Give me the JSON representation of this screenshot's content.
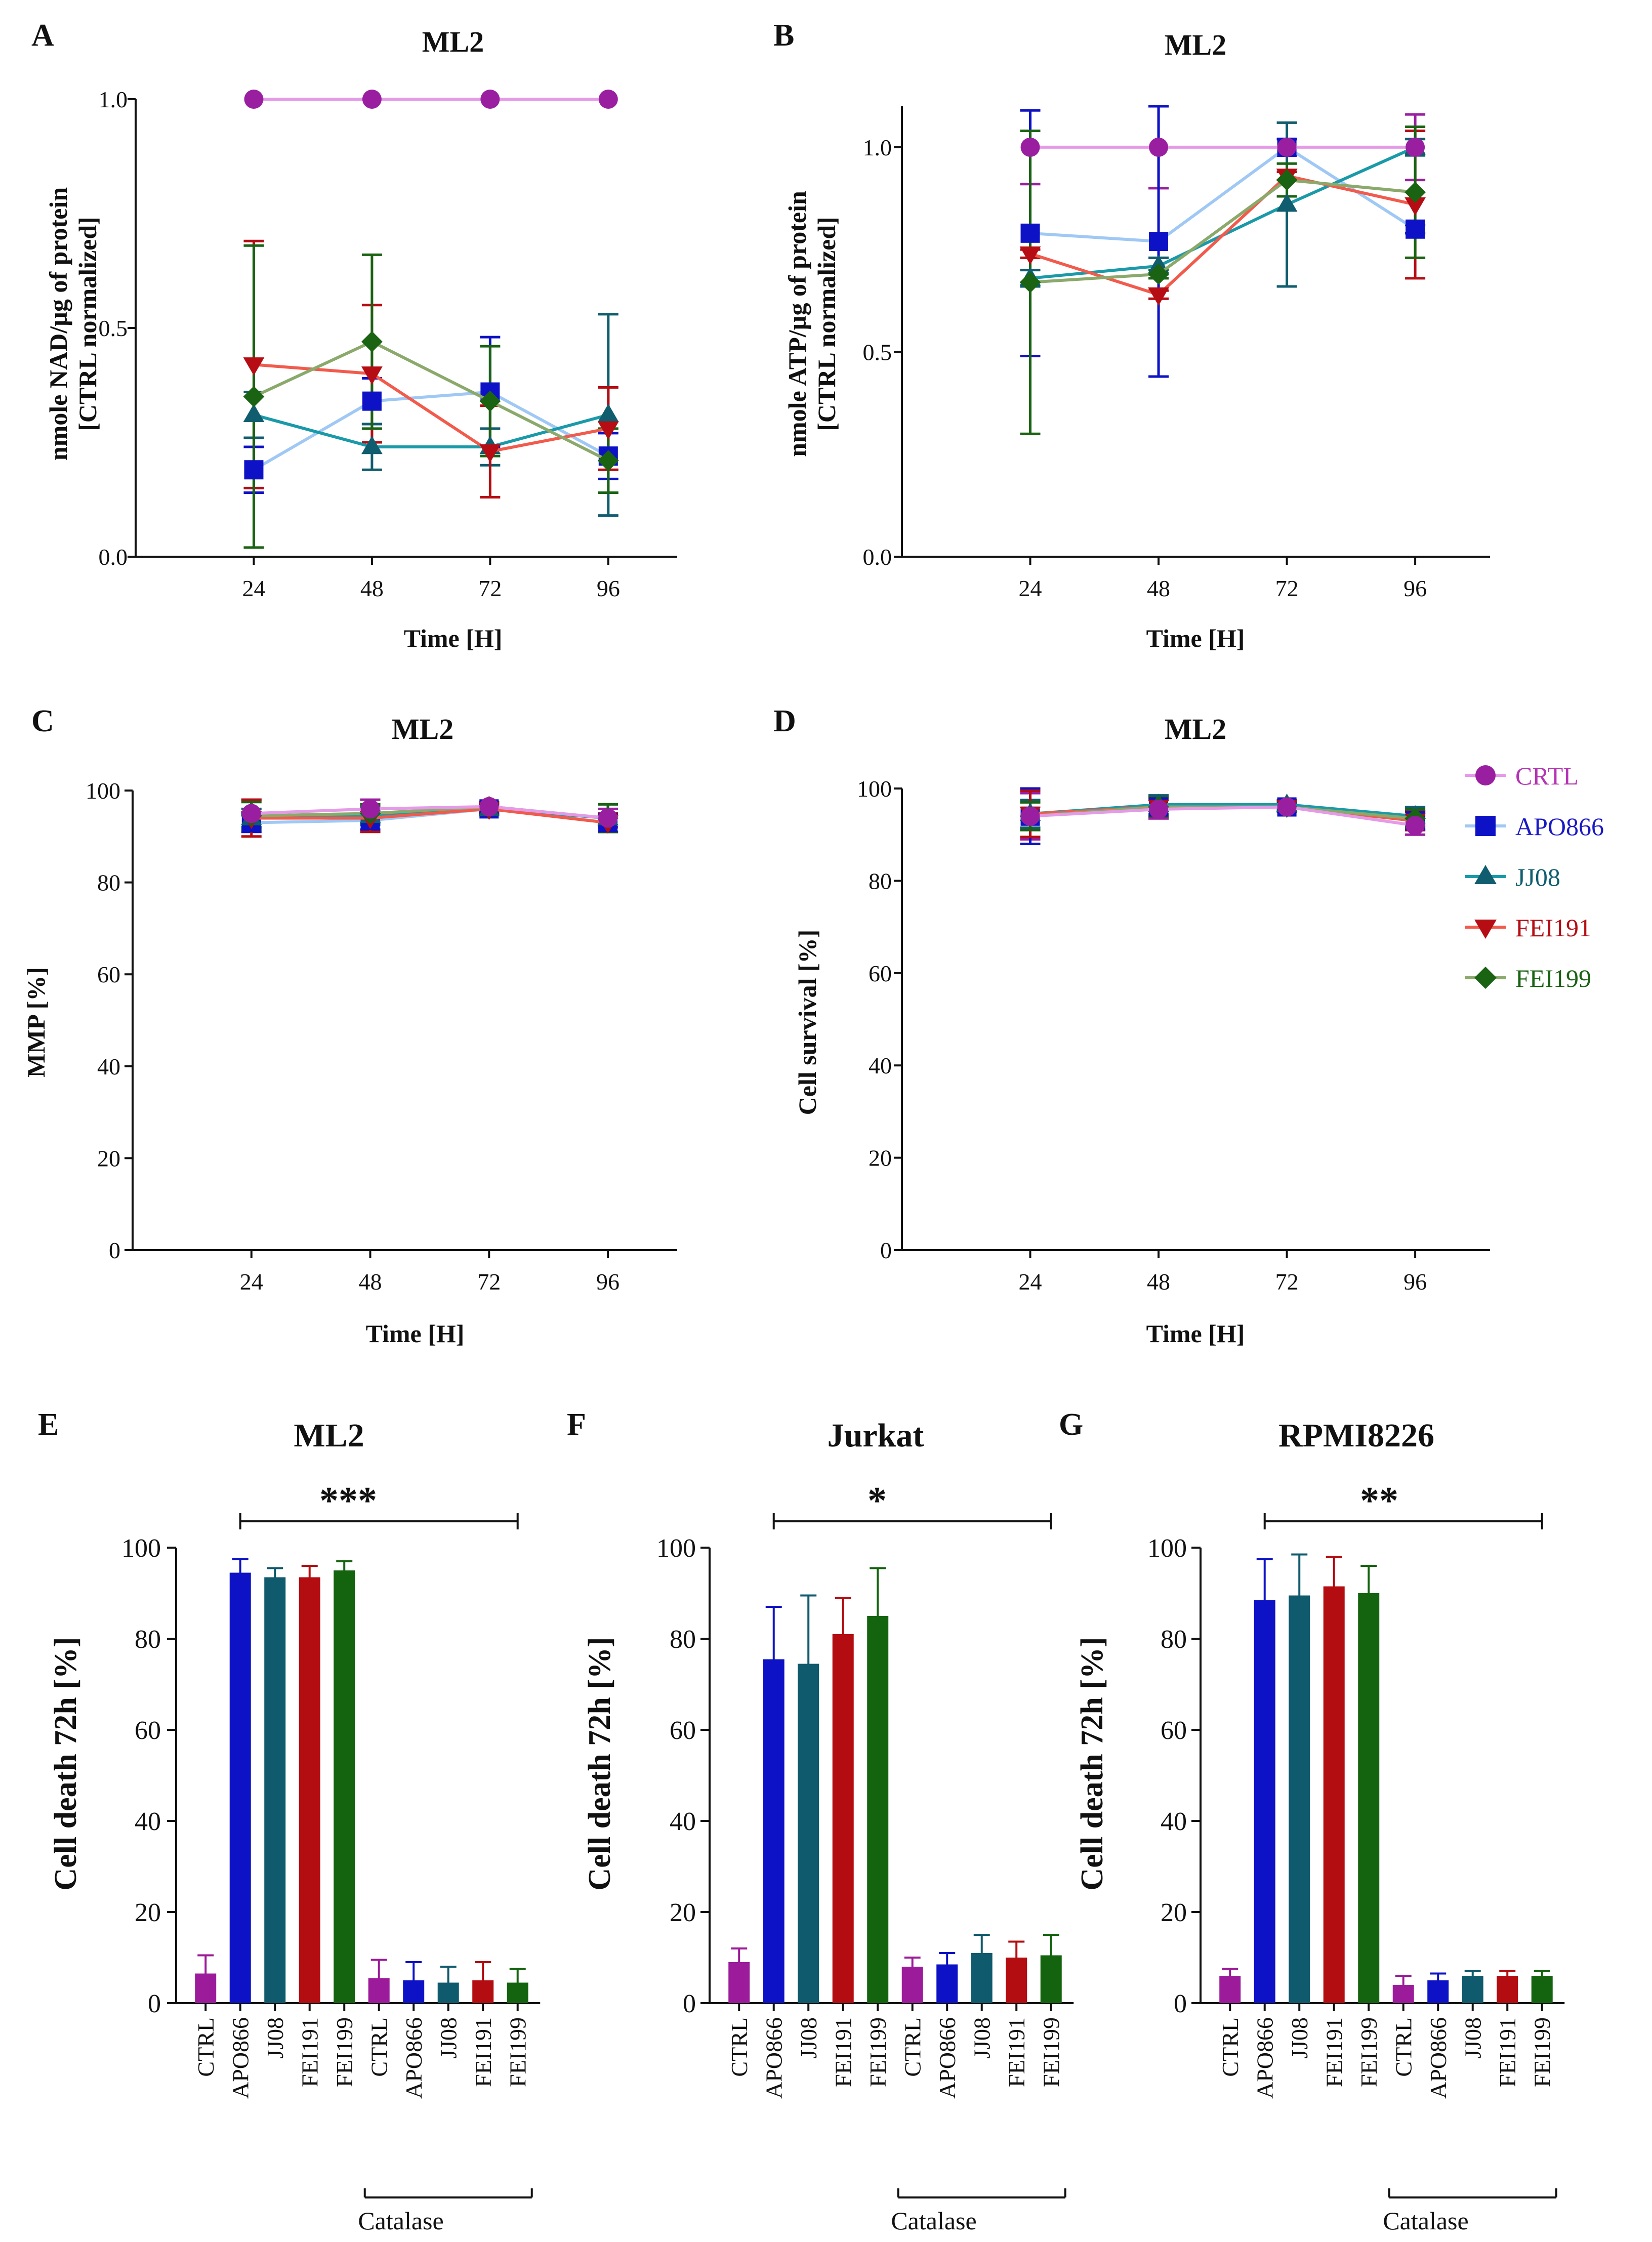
{
  "panels": [
    {
      "letter": "A",
      "title": "ML2",
      "ylabel": [
        "nmole NAD/µg of protein",
        "[CTRL normalized]"
      ],
      "xlabel": "Time [H]"
    },
    {
      "letter": "B",
      "title": "ML2",
      "ylabel": [
        "nmole ATP/µg of protein",
        "[CTRL normalized]"
      ],
      "xlabel": "Time [H]"
    },
    {
      "letter": "C",
      "title": "ML2",
      "ylabel": [
        "MMP [%]"
      ],
      "xlabel": "Time [H]"
    },
    {
      "letter": "D",
      "title": "ML2",
      "ylabel": [
        "Cell survival [%]"
      ],
      "xlabel": "Time [H]"
    },
    {
      "letter": "E",
      "title": "ML2",
      "ylabel": [
        "Cell death 72h [%]"
      ],
      "significance": "***",
      "group_label": "Catalase"
    },
    {
      "letter": "F",
      "title": "Jurkat",
      "ylabel": [
        "Cell death 72h [%]"
      ],
      "significance": "*",
      "group_label": "Catalase"
    },
    {
      "letter": "G",
      "title": "RPMI8226",
      "ylabel": [
        "Cell death 72h [%]"
      ],
      "significance": "**",
      "group_label": "Catalase"
    }
  ],
  "legend": [
    {
      "label": "CRTL",
      "marker": "circle",
      "color": "#9a1fa0",
      "line": "#e59ae8",
      "text_color": "#b533b5"
    },
    {
      "label": "APO866",
      "marker": "square",
      "color": "#0d12c6",
      "line": "#9fc8f5",
      "text_color": "#1a1ac4"
    },
    {
      "label": "JJ08",
      "marker": "triangle-up",
      "color": "#0f5d6e",
      "line": "#1a9aa8",
      "text_color": "#0f5d6e"
    },
    {
      "label": "FEI191",
      "marker": "triangle-down",
      "color": "#b50d13",
      "line": "#f25a4c",
      "text_color": "#b50d13"
    },
    {
      "label": "FEI199",
      "marker": "diamond",
      "color": "#1a6313",
      "line": "#8aa96b",
      "text_color": "#1a6313"
    }
  ],
  "chart_data": [
    {
      "id": "A",
      "type": "line",
      "title": "ML2",
      "xlabel": "Time [H]",
      "ylabel": "nmole NAD/µg of protein [CTRL normalized]",
      "x": [
        24,
        48,
        72,
        96
      ],
      "xlim": [
        0,
        110
      ],
      "ylim": [
        0,
        1.0
      ],
      "yticks": [
        0.0,
        0.5,
        1.0
      ],
      "ytick_labels": [
        "0.0",
        "0.5",
        "1.0"
      ],
      "series": [
        {
          "name": "CRTL",
          "values": [
            1.0,
            1.0,
            1.0,
            1.0
          ],
          "err": [
            0,
            0,
            0,
            0
          ]
        },
        {
          "name": "APO866",
          "values": [
            0.19,
            0.34,
            0.36,
            0.22
          ],
          "err": [
            0.05,
            0.05,
            0.12,
            0.05
          ]
        },
        {
          "name": "JJ08",
          "values": [
            0.31,
            0.24,
            0.24,
            0.31
          ],
          "err": [
            0.05,
            0.05,
            0.04,
            0.22
          ]
        },
        {
          "name": "FEI191",
          "values": [
            0.42,
            0.4,
            0.23,
            0.28
          ],
          "err": [
            0.27,
            0.15,
            0.1,
            0.09
          ]
        },
        {
          "name": "FEI199",
          "values": [
            0.35,
            0.47,
            0.34,
            0.21
          ],
          "err": [
            0.33,
            0.19,
            0.12,
            0.07
          ]
        }
      ]
    },
    {
      "id": "B",
      "type": "line",
      "title": "ML2",
      "xlabel": "Time [H]",
      "ylabel": "nmole ATP/µg of protein [CTRL normalized]",
      "x": [
        24,
        48,
        72,
        96
      ],
      "xlim": [
        0,
        110
      ],
      "ylim": [
        0,
        1.1
      ],
      "yticks": [
        0.0,
        0.5,
        1.0
      ],
      "ytick_labels": [
        "0.0",
        "0.5",
        "1.0"
      ],
      "series": [
        {
          "name": "CRTL",
          "values": [
            1.0,
            1.0,
            1.0,
            1.0
          ],
          "err": [
            0.09,
            0.1,
            0.02,
            0.08
          ]
        },
        {
          "name": "APO866",
          "values": [
            0.79,
            0.77,
            1.0,
            0.8
          ],
          "err": [
            0.3,
            0.33,
            0.02,
            0.01
          ]
        },
        {
          "name": "JJ08",
          "values": [
            0.68,
            0.71,
            0.86,
            1.0
          ],
          "err": [
            0.02,
            0.02,
            0.2,
            0.02
          ]
        },
        {
          "name": "FEI191",
          "values": [
            0.74,
            0.64,
            0.93,
            0.86
          ],
          "err": [
            0.01,
            0.01,
            0.01,
            0.18
          ]
        },
        {
          "name": "FEI199",
          "values": [
            0.67,
            0.69,
            0.92,
            0.89
          ],
          "err": [
            0.37,
            0.01,
            0.04,
            0.16
          ]
        }
      ]
    },
    {
      "id": "C",
      "type": "line",
      "title": "ML2",
      "xlabel": "Time [H]",
      "ylabel": "MMP [%]",
      "x": [
        24,
        48,
        72,
        96
      ],
      "xlim": [
        0,
        110
      ],
      "ylim": [
        0,
        100
      ],
      "yticks": [
        0,
        20,
        40,
        60,
        80,
        100
      ],
      "ytick_labels": [
        "0",
        "20",
        "40",
        "60",
        "80",
        "100"
      ],
      "series": [
        {
          "name": "CRTL",
          "values": [
            95,
            96,
            96.5,
            94
          ],
          "err": [
            3,
            2,
            1,
            2
          ]
        },
        {
          "name": "APO866",
          "values": [
            93,
            93.5,
            96,
            93
          ],
          "err": [
            2,
            2,
            1,
            2
          ]
        },
        {
          "name": "JJ08",
          "values": [
            94,
            94.5,
            96,
            94
          ],
          "err": [
            2,
            2,
            1,
            3
          ]
        },
        {
          "name": "FEI191",
          "values": [
            94,
            94,
            96,
            93
          ],
          "err": [
            4,
            3,
            1,
            2
          ]
        },
        {
          "name": "FEI199",
          "values": [
            94.5,
            95,
            96.5,
            94
          ],
          "err": [
            3,
            2,
            1,
            3
          ]
        }
      ]
    },
    {
      "id": "D",
      "type": "line",
      "title": "ML2",
      "xlabel": "Time [H]",
      "ylabel": "Cell survival [%]",
      "x": [
        24,
        48,
        72,
        96
      ],
      "xlim": [
        0,
        110
      ],
      "ylim": [
        0,
        100
      ],
      "yticks": [
        0,
        20,
        40,
        60,
        80,
        100
      ],
      "ytick_labels": [
        "0",
        "20",
        "40",
        "60",
        "80",
        "100"
      ],
      "series": [
        {
          "name": "CRTL",
          "values": [
            94,
            95.5,
            96,
            92
          ],
          "err": [
            5,
            2,
            1,
            2
          ]
        },
        {
          "name": "APO866",
          "values": [
            94,
            96,
            96,
            93
          ],
          "err": [
            6,
            2,
            1,
            2
          ]
        },
        {
          "name": "JJ08",
          "values": [
            94.5,
            96.5,
            96.5,
            94
          ],
          "err": [
            3,
            2,
            1,
            2
          ]
        },
        {
          "name": "FEI191",
          "values": [
            94.5,
            96,
            96,
            93
          ],
          "err": [
            5,
            2,
            1,
            2
          ]
        },
        {
          "name": "FEI199",
          "values": [
            94,
            96,
            96,
            93.5
          ],
          "err": [
            3,
            2,
            1,
            2
          ]
        }
      ]
    },
    {
      "id": "E",
      "type": "bar",
      "title": "ML2",
      "ylabel": "Cell death 72h [%]",
      "categories": [
        "CTRL",
        "APO866",
        "JJ08",
        "FEI191",
        "FEI199",
        "CTRL",
        "APO866",
        "JJ08",
        "FEI191",
        "FEI199"
      ],
      "group_label": "Catalase",
      "group_range": [
        5,
        9
      ],
      "significance": "***",
      "sig_range": [
        1,
        9
      ],
      "values": [
        6.5,
        94.5,
        93.5,
        93.5,
        95,
        5.5,
        5,
        4.5,
        5,
        4.5
      ],
      "err": [
        4,
        3,
        2,
        2.5,
        2,
        4,
        4,
        3.5,
        4,
        3
      ],
      "ylim": [
        0,
        100
      ],
      "yticks": [
        0,
        20,
        40,
        60,
        80,
        100
      ],
      "ytick_labels": [
        "0",
        "20",
        "40",
        "60",
        "80",
        "100"
      ]
    },
    {
      "id": "F",
      "type": "bar",
      "title": "Jurkat",
      "ylabel": "Cell death 72h [%]",
      "categories": [
        "CTRL",
        "APO866",
        "JJ08",
        "FEI191",
        "FEI199",
        "CTRL",
        "APO866",
        "JJ08",
        "FEI191",
        "FEI199"
      ],
      "group_label": "Catalase",
      "group_range": [
        5,
        9
      ],
      "significance": "*",
      "sig_range": [
        1,
        9
      ],
      "values": [
        9,
        75.5,
        74.5,
        81,
        85,
        8,
        8.5,
        11,
        10,
        10.5
      ],
      "err": [
        3,
        11.5,
        15,
        8,
        10.5,
        2,
        2.5,
        4,
        3.5,
        4.5
      ],
      "ylim": [
        0,
        100
      ],
      "yticks": [
        0,
        20,
        40,
        60,
        80,
        100
      ],
      "ytick_labels": [
        "0",
        "20",
        "40",
        "60",
        "80",
        "100"
      ]
    },
    {
      "id": "G",
      "type": "bar",
      "title": "RPMI8226",
      "ylabel": "Cell death 72h [%]",
      "categories": [
        "CTRL",
        "APO866",
        "JJ08",
        "FEI191",
        "FEI199",
        "CTRL",
        "APO866",
        "JJ08",
        "FEI191",
        "FEI199"
      ],
      "group_label": "Catalase",
      "group_range": [
        5,
        9
      ],
      "significance": "**",
      "sig_range": [
        1,
        9
      ],
      "values": [
        6,
        88.5,
        89.5,
        91.5,
        90,
        4,
        5,
        6,
        6,
        6
      ],
      "err": [
        1.5,
        9,
        9,
        6.5,
        6,
        2,
        1.5,
        1,
        1,
        1
      ],
      "ylim": [
        0,
        100
      ],
      "yticks": [
        0,
        20,
        40,
        60,
        80,
        100
      ],
      "ytick_labels": [
        "0",
        "20",
        "40",
        "60",
        "80",
        "100"
      ]
    }
  ]
}
